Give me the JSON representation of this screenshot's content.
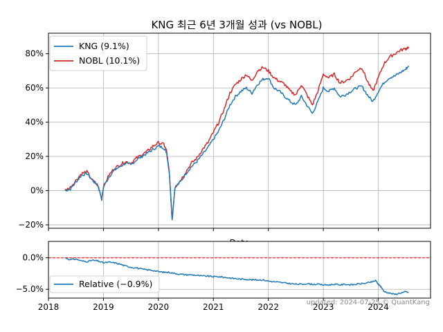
{
  "chart_data": [
    {
      "type": "line",
      "title": "KNG 최근 6년 3개월 성과 (vs NOBL)",
      "xlabel": "Date",
      "ylabel": "",
      "x_range": [
        2018.0,
        2024.95
      ],
      "ylim": [
        -22,
        92
      ],
      "x_ticks": [
        2018,
        2019,
        2020,
        2021,
        2022,
        2023,
        2024
      ],
      "y_ticks": [
        -20,
        0,
        20,
        40,
        60,
        80
      ],
      "y_tick_labels": [
        "−20%",
        "0%",
        "20%",
        "40%",
        "60%",
        "80%"
      ],
      "grid": true,
      "legend_position": "top-left",
      "series": [
        {
          "name": "KNG (9.1%)",
          "color": "#1f77b4",
          "x": [
            2018.3,
            2018.4,
            2018.5,
            2018.6,
            2018.7,
            2018.8,
            2018.9,
            2018.97,
            2019.0,
            2019.1,
            2019.2,
            2019.3,
            2019.4,
            2019.5,
            2019.6,
            2019.7,
            2019.8,
            2019.9,
            2020.0,
            2020.1,
            2020.15,
            2020.2,
            2020.25,
            2020.3,
            2020.4,
            2020.5,
            2020.6,
            2020.7,
            2020.8,
            2020.9,
            2021.0,
            2021.1,
            2021.2,
            2021.3,
            2021.4,
            2021.5,
            2021.6,
            2021.7,
            2021.8,
            2021.9,
            2022.0,
            2022.1,
            2022.2,
            2022.3,
            2022.4,
            2022.5,
            2022.6,
            2022.7,
            2022.8,
            2022.9,
            2023.0,
            2023.1,
            2023.2,
            2023.3,
            2023.4,
            2023.5,
            2023.6,
            2023.7,
            2023.8,
            2023.9,
            2024.0,
            2024.1,
            2024.2,
            2024.3,
            2024.4,
            2024.5,
            2024.55
          ],
          "values": [
            0,
            1,
            5,
            9,
            10,
            6,
            3,
            -5,
            2,
            8,
            12,
            14,
            16,
            15,
            18,
            20,
            22,
            24,
            26,
            25,
            22,
            10,
            -17,
            2,
            5,
            10,
            14,
            17,
            21,
            25,
            30,
            35,
            42,
            50,
            55,
            58,
            60,
            57,
            62,
            65,
            66,
            60,
            58,
            55,
            52,
            50,
            55,
            50,
            45,
            52,
            60,
            58,
            60,
            55,
            56,
            58,
            60,
            61,
            56,
            52,
            58,
            63,
            66,
            67,
            69,
            71,
            73
          ]
        },
        {
          "name": "NOBL (10.1%)",
          "color": "#d62728",
          "x": [
            2018.3,
            2018.4,
            2018.5,
            2018.6,
            2018.7,
            2018.8,
            2018.9,
            2018.97,
            2019.0,
            2019.1,
            2019.2,
            2019.3,
            2019.4,
            2019.5,
            2019.6,
            2019.7,
            2019.8,
            2019.9,
            2020.0,
            2020.1,
            2020.15,
            2020.2,
            2020.25,
            2020.3,
            2020.4,
            2020.5,
            2020.6,
            2020.7,
            2020.8,
            2020.9,
            2021.0,
            2021.1,
            2021.2,
            2021.3,
            2021.4,
            2021.5,
            2021.6,
            2021.7,
            2021.8,
            2021.9,
            2022.0,
            2022.1,
            2022.2,
            2022.3,
            2022.4,
            2022.5,
            2022.6,
            2022.7,
            2022.8,
            2022.9,
            2023.0,
            2023.1,
            2023.2,
            2023.3,
            2023.4,
            2023.5,
            2023.6,
            2023.7,
            2023.8,
            2023.9,
            2024.0,
            2024.1,
            2024.2,
            2024.3,
            2024.4,
            2024.5,
            2024.55
          ],
          "values": [
            0,
            2,
            6,
            10,
            11,
            6,
            3,
            -5,
            2,
            9,
            13,
            15,
            17,
            16,
            19,
            21,
            23,
            26,
            28,
            27,
            23,
            10,
            -17,
            2,
            6,
            11,
            16,
            19,
            24,
            28,
            34,
            40,
            48,
            57,
            62,
            65,
            68,
            64,
            70,
            72,
            70,
            66,
            64,
            62,
            58,
            56,
            62,
            56,
            50,
            58,
            68,
            66,
            68,
            63,
            64,
            66,
            70,
            72,
            64,
            58,
            66,
            74,
            78,
            80,
            82,
            83,
            84
          ]
        }
      ]
    },
    {
      "type": "line",
      "title": "",
      "xlabel": "",
      "ylabel": "",
      "x_range": [
        2018.0,
        2024.95
      ],
      "ylim": [
        -6.4,
        2.6
      ],
      "x_ticks": [
        2018,
        2019,
        2020,
        2021,
        2022,
        2023,
        2024
      ],
      "x_tick_labels": [
        "2018",
        "2019",
        "2020",
        "2021",
        "2022",
        "2023",
        "2024"
      ],
      "y_ticks": [
        -5,
        0
      ],
      "y_tick_labels": [
        "−5.0%",
        "0.0%"
      ],
      "grid": true,
      "legend_position": "bottom-left",
      "reference_line": {
        "y": 0,
        "color": "#ff0000",
        "style": "dashed"
      },
      "series": [
        {
          "name": "Relative (−0.9%)",
          "color": "#1f77b4",
          "x": [
            2018.3,
            2018.4,
            2018.5,
            2018.6,
            2018.7,
            2018.8,
            2018.9,
            2019.0,
            2019.1,
            2019.2,
            2019.3,
            2019.4,
            2019.5,
            2019.6,
            2019.7,
            2019.8,
            2019.9,
            2020.0,
            2020.1,
            2020.2,
            2020.3,
            2020.4,
            2020.5,
            2020.6,
            2020.7,
            2020.8,
            2020.9,
            2021.0,
            2021.1,
            2021.2,
            2021.3,
            2021.4,
            2021.5,
            2021.6,
            2021.7,
            2021.8,
            2021.9,
            2022.0,
            2022.1,
            2022.2,
            2022.3,
            2022.4,
            2022.5,
            2022.6,
            2022.7,
            2022.8,
            2022.9,
            2023.0,
            2023.1,
            2023.2,
            2023.3,
            2023.4,
            2023.5,
            2023.6,
            2023.7,
            2023.8,
            2023.9,
            2023.95,
            2024.0,
            2024.05,
            2024.1,
            2024.2,
            2024.3,
            2024.4,
            2024.5,
            2024.55
          ],
          "values": [
            0,
            -0.3,
            -0.2,
            -0.5,
            -0.6,
            -0.4,
            -0.5,
            -0.8,
            -0.7,
            -0.8,
            -1.0,
            -1.3,
            -1.5,
            -1.6,
            -1.8,
            -1.9,
            -2.0,
            -2.2,
            -2.3,
            -2.3,
            -2.5,
            -2.6,
            -2.7,
            -2.7,
            -2.8,
            -2.9,
            -2.9,
            -3.0,
            -3.0,
            -3.1,
            -3.2,
            -3.3,
            -3.4,
            -3.4,
            -3.5,
            -3.5,
            -3.5,
            -3.7,
            -3.8,
            -3.9,
            -4.0,
            -4.1,
            -4.2,
            -4.2,
            -4.1,
            -4.2,
            -4.2,
            -4.3,
            -4.3,
            -4.2,
            -4.3,
            -4.2,
            -4.3,
            -4.2,
            -4.1,
            -4.0,
            -3.8,
            -3.6,
            -4.2,
            -4.6,
            -5.3,
            -5.6,
            -5.8,
            -5.6,
            -5.4,
            -5.5
          ]
        }
      ]
    }
  ],
  "footer": "updated: 2024-07-25 © QuantKang"
}
